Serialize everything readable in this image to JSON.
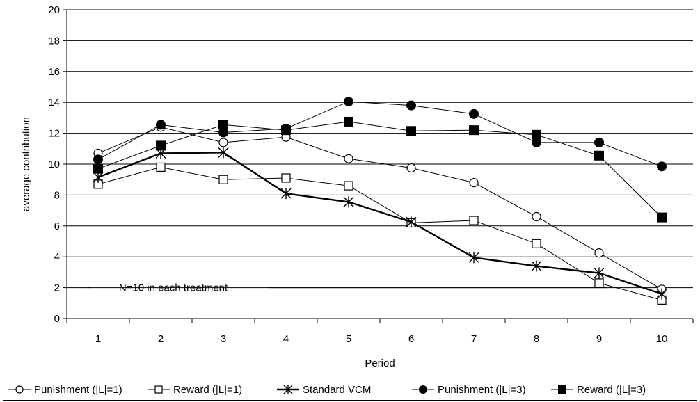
{
  "chart_data": {
    "type": "line",
    "x": [
      1,
      2,
      3,
      4,
      5,
      6,
      7,
      8,
      9,
      10
    ],
    "xlabel": "Period",
    "ylabel": "average contribution",
    "ylim": [
      0,
      20
    ],
    "yticks": [
      0,
      2,
      4,
      6,
      8,
      10,
      12,
      14,
      16,
      18,
      20
    ],
    "grid": "horizontal",
    "legend_position": "bottom",
    "annotation": "N=10 in each treatment",
    "series": [
      {
        "name": "Punishment (|L|=1)",
        "marker": "open-circle",
        "values": [
          10.7,
          12.4,
          11.4,
          11.75,
          10.35,
          9.75,
          8.8,
          6.6,
          4.25,
          1.9
        ]
      },
      {
        "name": "Reward  (|L|=1)",
        "marker": "open-square",
        "values": [
          8.7,
          9.8,
          9.0,
          9.1,
          8.6,
          6.2,
          6.35,
          4.85,
          2.3,
          1.2
        ]
      },
      {
        "name": "Standard VCM",
        "marker": "asterisk",
        "bold": true,
        "values": [
          9.15,
          10.7,
          10.75,
          8.1,
          7.55,
          6.25,
          3.95,
          3.4,
          2.95,
          1.6
        ]
      },
      {
        "name": "Punishment (|L|=3)",
        "marker": "filled-circle",
        "values": [
          10.3,
          12.55,
          12.05,
          12.3,
          14.05,
          13.8,
          13.25,
          11.4,
          11.4,
          9.85
        ]
      },
      {
        "name": "Reward  (|L|=3)",
        "marker": "filled-square",
        "values": [
          9.7,
          11.2,
          12.55,
          12.2,
          12.75,
          12.15,
          12.2,
          11.9,
          10.55,
          6.55
        ]
      }
    ]
  }
}
